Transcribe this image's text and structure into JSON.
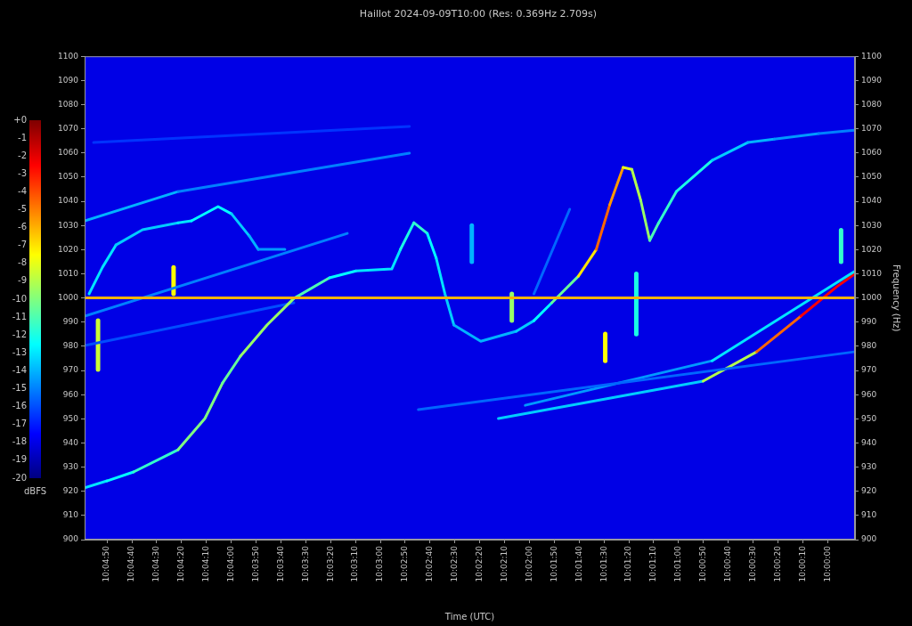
{
  "chart_data": {
    "type": "spectrogram",
    "title": "Haillot 2024-09-09T10:00 (Res: 0.369Hz 2.709s)",
    "x_label": "Time (UTC)",
    "y_label": "Frequency (Hz)",
    "xlim": [
      -11,
      299
    ],
    "xticks": [
      {
        "value": 0,
        "label": "10:00:00"
      },
      {
        "value": 10,
        "label": "10:00:10"
      },
      {
        "value": 20,
        "label": "10:00:20"
      },
      {
        "value": 30,
        "label": "10:00:30"
      },
      {
        "value": 40,
        "label": "10:00:40"
      },
      {
        "value": 50,
        "label": "10:00:50"
      },
      {
        "value": 60,
        "label": "10:01:00"
      },
      {
        "value": 70,
        "label": "10:01:10"
      },
      {
        "value": 80,
        "label": "10:01:20"
      },
      {
        "value": 90,
        "label": "10:01:30"
      },
      {
        "value": 100,
        "label": "10:01:40"
      },
      {
        "value": 110,
        "label": "10:01:50"
      },
      {
        "value": 120,
        "label": "10:02:00"
      },
      {
        "value": 130,
        "label": "10:02:10"
      },
      {
        "value": 140,
        "label": "10:02:20"
      },
      {
        "value": 150,
        "label": "10:02:30"
      },
      {
        "value": 160,
        "label": "10:02:40"
      },
      {
        "value": 170,
        "label": "10:02:50"
      },
      {
        "value": 180,
        "label": "10:03:00"
      },
      {
        "value": 190,
        "label": "10:03:10"
      },
      {
        "value": 200,
        "label": "10:03:20"
      },
      {
        "value": 210,
        "label": "10:03:30"
      },
      {
        "value": 220,
        "label": "10:03:40"
      },
      {
        "value": 230,
        "label": "10:03:50"
      },
      {
        "value": 240,
        "label": "10:04:00"
      },
      {
        "value": 250,
        "label": "10:04:10"
      },
      {
        "value": 260,
        "label": "10:04:20"
      },
      {
        "value": 270,
        "label": "10:04:30"
      },
      {
        "value": 280,
        "label": "10:04:40"
      },
      {
        "value": 290,
        "label": "10:04:50"
      }
    ],
    "ylim": [
      900,
      1100
    ],
    "yticks": [
      900,
      910,
      920,
      930,
      940,
      950,
      960,
      970,
      980,
      990,
      1000,
      1010,
      1020,
      1030,
      1040,
      1050,
      1060,
      1070,
      1080,
      1090,
      1100
    ],
    "grid": false,
    "colorbar": {
      "label": "dBFS",
      "range": [
        -20,
        0
      ],
      "ticks": [
        {
          "value": 0,
          "label": "+0"
        },
        -1,
        -2,
        -3,
        -4,
        -5,
        -6,
        -7,
        -8,
        -9,
        -10,
        -11,
        -12,
        -13,
        -14,
        -15,
        -16,
        -17,
        -18,
        -19,
        -20
      ]
    },
    "noise_floor": -18,
    "traces": [
      [
        [
          -11,
          1000,
          -6
        ],
        [
          299,
          1000,
          -6
        ]
      ],
      [
        [
          299,
          921.4,
          -13
        ],
        [
          290,
          924.3,
          -13
        ],
        [
          279.3,
          928,
          -12
        ],
        [
          261.4,
          937.2,
          -11
        ],
        [
          250.6,
          950.1,
          -9
        ],
        [
          243.5,
          964.8,
          -11
        ],
        [
          236.3,
          975.9,
          -10
        ],
        [
          225.6,
          988.8,
          -9
        ],
        [
          214.8,
          999.8,
          -10
        ],
        [
          200.5,
          1008.3,
          -12
        ],
        [
          189.8,
          1011.2,
          -13
        ],
        [
          175.4,
          1012,
          -13
        ],
        [
          171.9,
          1020.1,
          -13
        ],
        [
          166.5,
          1031.1,
          -11
        ],
        [
          161.1,
          1026.7,
          -12
        ],
        [
          157.5,
          1016.4,
          -13
        ],
        [
          154,
          1001.7,
          -13
        ],
        [
          150.4,
          988.8,
          -14
        ],
        [
          139.6,
          982.1,
          -14
        ],
        [
          125.3,
          986.2,
          -14
        ],
        [
          118.2,
          990.6,
          -13
        ],
        [
          111,
          998,
          -12
        ],
        [
          100.3,
          1009,
          -9
        ],
        [
          93.1,
          1020.1,
          -5
        ],
        [
          87.7,
          1038.5,
          -4
        ],
        [
          82.3,
          1054,
          -7
        ],
        [
          78.8,
          1053.2,
          -9
        ],
        [
          75.2,
          1040.3,
          -9
        ],
        [
          71.6,
          1023.8,
          -10
        ],
        [
          68,
          1031.1,
          -12
        ],
        [
          60.9,
          1044,
          -11
        ],
        [
          46.5,
          1056.9,
          -13
        ],
        [
          32.2,
          1064.3,
          -14
        ],
        [
          21.5,
          1065.7,
          -14
        ],
        [
          3.6,
          1068,
          -15
        ],
        [
          -10.7,
          1069.4,
          -15
        ]
      ],
      [
        [
          297.2,
          1001.7,
          -13
        ],
        [
          291.8,
          1012.7,
          -13
        ],
        [
          286.4,
          1021.9,
          -13
        ],
        [
          275.7,
          1028.2,
          -14
        ],
        [
          261.4,
          1031.1,
          -13
        ],
        [
          256,
          1031.9,
          -13
        ],
        [
          245.3,
          1037.8,
          -12
        ],
        [
          239.9,
          1034.8,
          -13
        ],
        [
          232.7,
          1025.6,
          -14
        ],
        [
          229.1,
          1020.1,
          -14
        ],
        [
          218.4,
          1020.1,
          -15
        ]
      ],
      [
        [
          299,
          1031.9,
          -14
        ],
        [
          261.4,
          1044,
          -14
        ],
        [
          168.3,
          1059.9,
          -16
        ]
      ],
      [
        [
          295.4,
          1064.3,
          -16
        ],
        [
          168.3,
          1071,
          -17
        ]
      ],
      [
        [
          299,
          992.5,
          -14
        ],
        [
          193.3,
          1026.7,
          -16
        ]
      ],
      [
        [
          299,
          980.3,
          -16
        ],
        [
          214.8,
          998,
          -16
        ]
      ],
      [
        [
          118.2,
          1001.7,
          -16
        ],
        [
          103.8,
          1036.7,
          -15
        ]
      ],
      [
        [
          164.7,
          953.8,
          -16
        ],
        [
          -10.7,
          977.7,
          -15
        ]
      ],
      [
        [
          121.7,
          955.6,
          -15
        ],
        [
          46.5,
          974,
          -14
        ],
        [
          -10.7,
          1010.9,
          -12
        ]
      ],
      [
        [
          132.5,
          950.1,
          -15
        ],
        [
          50.1,
          965.6,
          -12
        ],
        [
          28.6,
          977.7,
          -6
        ],
        [
          10.7,
          992.5,
          -3
        ],
        [
          -3.6,
          1004.6,
          -2
        ],
        [
          -10.7,
          1009.8,
          -3
        ]
      ],
      [
        [
          293.6,
          970.4,
          -12
        ],
        [
          293.6,
          980.3,
          -5
        ],
        [
          293.6,
          990.6,
          -12
        ]
      ],
      [
        [
          263.2,
          1001.7,
          -12
        ],
        [
          263.2,
          1006.5,
          -3
        ],
        [
          263.2,
          1012.7,
          -12
        ]
      ],
      [
        [
          143.2,
          1015,
          -15
        ],
        [
          143.2,
          1022,
          -13
        ],
        [
          143.2,
          1030,
          -15
        ]
      ],
      [
        [
          127.1,
          990.6,
          -12
        ],
        [
          127.1,
          995.5,
          -7
        ],
        [
          127.1,
          1001.7,
          -12
        ]
      ],
      [
        [
          89.5,
          974,
          -12
        ],
        [
          89.5,
          980.3,
          -3
        ],
        [
          89.5,
          985.1,
          -12
        ]
      ],
      [
        [
          77,
          985,
          -14
        ],
        [
          77,
          1000,
          -10
        ],
        [
          77,
          1010,
          -14
        ]
      ],
      [
        [
          -5.4,
          1015,
          -13
        ],
        [
          -5.4,
          1021.9,
          -10
        ],
        [
          -5.4,
          1028,
          -13
        ]
      ]
    ]
  }
}
